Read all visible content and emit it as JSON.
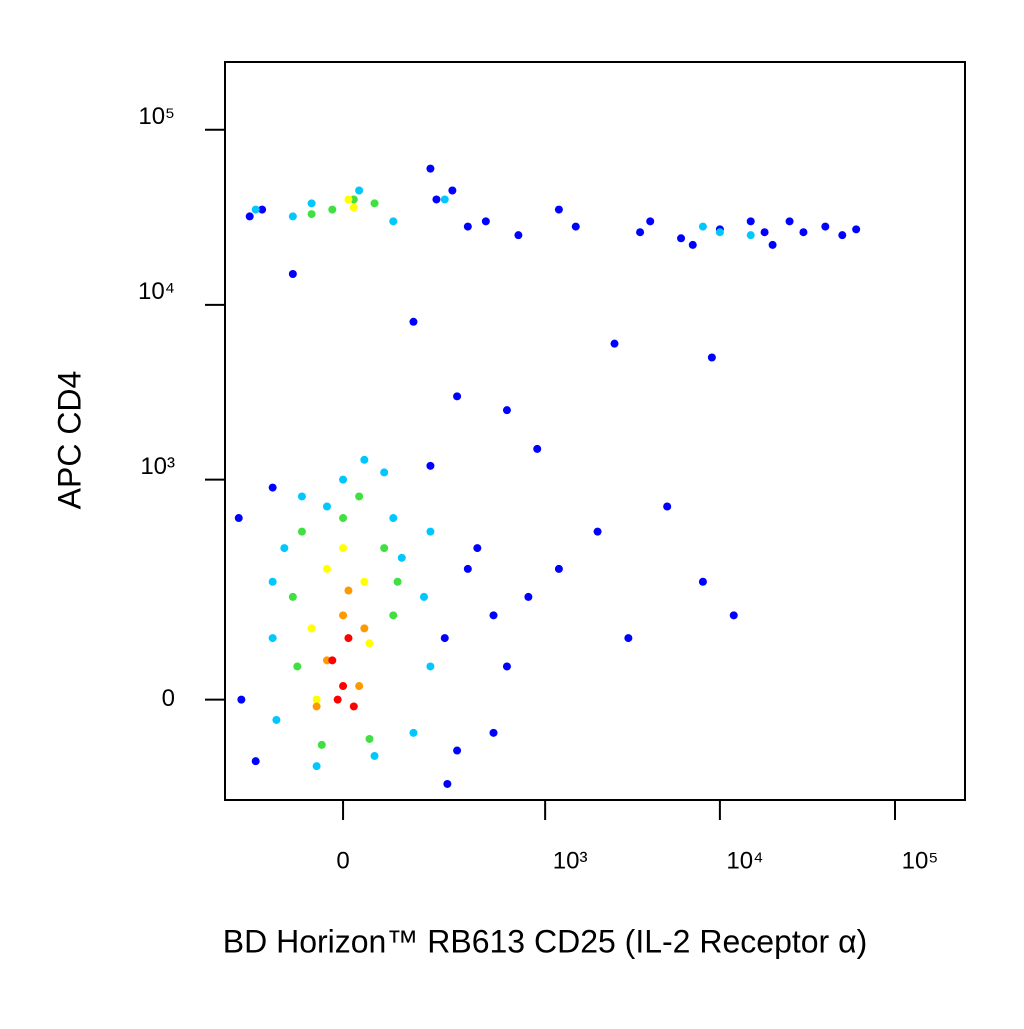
{
  "chart_data": {
    "type": "scatter",
    "xlabel": "BD Horizon™ RB613 CD25 (IL-2 Receptor α)",
    "ylabel": "APC CD4",
    "xscale": "biexponential",
    "yscale": "biexponential",
    "xlim": [
      -318,
      251000
    ],
    "ylim": [
      -193,
      244000
    ],
    "xticks": [
      0,
      {
        "value": 1000,
        "label": "10³"
      },
      {
        "value": 10000,
        "label": "10⁴"
      },
      {
        "value": 100000,
        "label": "10⁵"
      }
    ],
    "yticks": [
      0,
      {
        "value": 1000,
        "label": "10³"
      },
      {
        "value": 10000,
        "label": "10⁴"
      },
      {
        "value": 100000,
        "label": "10⁵"
      }
    ],
    "series": [
      {
        "color": "#0000ff",
        "x": [
          -250,
          -200,
          250,
          300,
          350,
          -150,
          200,
          400,
          500,
          600,
          800,
          1200,
          2000,
          3000,
          5000,
          8000,
          12000,
          15000,
          20000,
          30000,
          40000,
          60000,
          -180,
          220,
          -220,
          280,
          450,
          700,
          1500,
          4000,
          6000,
          10000,
          18000,
          25000,
          50000,
          2500,
          9000,
          600,
          900,
          300,
          -100,
          150,
          200,
          350,
          1200,
          3500,
          7000,
          500,
          260,
          -260
        ],
        "values": [
          0,
          -100,
          100,
          -80,
          300,
          900,
          1200,
          400,
          150,
          50,
          200,
          300,
          500,
          100,
          700,
          250,
          150,
          30000,
          22000,
          26000,
          28000,
          27000,
          35000,
          40000,
          32000,
          45000,
          30000,
          25000,
          28000,
          30000,
          24000,
          27000,
          26000,
          30000,
          25000,
          6000,
          5000,
          2500,
          1500,
          3000,
          15000,
          8000,
          60000,
          28000,
          35000,
          26000,
          22000,
          -50,
          -150,
          600
        ]
      },
      {
        "color": "#00c8ff",
        "x": [
          -150,
          150,
          -120,
          180,
          -80,
          100,
          0,
          -50,
          60,
          -140,
          120,
          200,
          40,
          -30,
          80,
          -60,
          30,
          100,
          -100,
          250,
          -200,
          10000,
          8000,
          15000,
          -150,
          200
        ],
        "values": [
          100,
          -50,
          400,
          200,
          800,
          600,
          1000,
          -110,
          -90,
          -30,
          350,
          50,
          1300,
          700,
          1100,
          38000,
          45000,
          30000,
          32000,
          40000,
          35000,
          26000,
          28000,
          25000,
          250,
          500
        ]
      },
      {
        "color": "#40e040",
        "x": [
          -100,
          100,
          -80,
          80,
          0,
          -40,
          50,
          30,
          -90,
          110,
          20,
          -20,
          60,
          -60
        ],
        "values": [
          200,
          150,
          500,
          400,
          600,
          -70,
          -60,
          800,
          50,
          250,
          40000,
          35000,
          38000,
          33000
        ]
      },
      {
        "color": "#ffff00",
        "x": [
          -60,
          50,
          -30,
          40,
          0,
          -50,
          20,
          10
        ],
        "values": [
          120,
          90,
          300,
          250,
          400,
          0,
          36000,
          40000
        ]
      },
      {
        "color": "#ff9900",
        "x": [
          -30,
          30,
          0,
          -50,
          40,
          10
        ],
        "values": [
          60,
          20,
          150,
          -10,
          120,
          220
        ]
      },
      {
        "color": "#ff0000",
        "x": [
          0,
          -20,
          20,
          10,
          -10
        ],
        "values": [
          20,
          60,
          -10,
          100,
          0
        ]
      }
    ]
  }
}
